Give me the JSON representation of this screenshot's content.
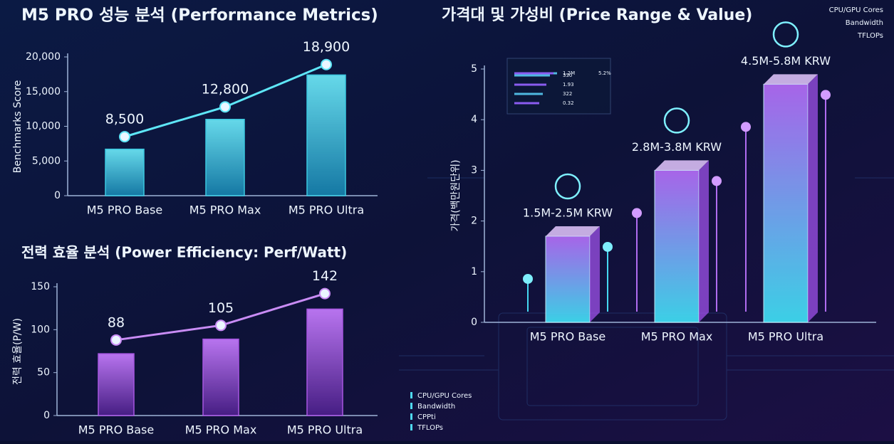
{
  "chart_data": [
    {
      "type": "bar_line",
      "title": "M5 PRO 성능 분석 (Performance Metrics)",
      "y_label": "Benchmarks Score",
      "categories": [
        "M5 PRO Base",
        "M5 PRO Max",
        "M5 PRO Ultra"
      ],
      "series": [
        {
          "type": "bar",
          "color": "#3fd8ee",
          "values": [
            6700,
            11000,
            17400
          ]
        },
        {
          "type": "line",
          "color": "#5ee6f7",
          "values": [
            8500,
            12800,
            18900
          ],
          "value_labels": [
            "8,500",
            "12,800",
            "18,900"
          ]
        }
      ],
      "ylim": [
        0,
        20000
      ],
      "yticks": [
        0,
        {
          "value": 5000,
          "label": "5,000"
        },
        {
          "value": 10000,
          "label": "10,000"
        },
        {
          "value": 15000,
          "label": "15,000"
        },
        {
          "value": 20000,
          "label": "20,000"
        }
      ]
    },
    {
      "type": "bar_line",
      "title": "전력 효율 분석 (Power Efficiency: Perf/Watt)",
      "y_label": "전력 효율(P/W)",
      "categories": [
        "M5 PRO Base",
        "M5 PRO Max",
        "M5 PRO Ultra"
      ],
      "series": [
        {
          "type": "bar",
          "color": "#b45cf0",
          "values": [
            72,
            89,
            124
          ]
        },
        {
          "type": "line",
          "color": "#c98cf5",
          "values": [
            88,
            105,
            142
          ]
        }
      ],
      "ylim": [
        0,
        150
      ],
      "yticks": [
        0,
        50,
        100,
        150
      ]
    },
    {
      "type": "bar3d",
      "title": "가격대 및 가성비 (Price Range & Value)",
      "y_label": "가격(백만원단위)",
      "categories": [
        "M5 PRO Base",
        "M5 PRO Max",
        "M5 PRO Ultra"
      ],
      "series": [
        {
          "color": "#a855f7",
          "values": [
            1.7,
            3.0,
            4.7
          ]
        }
      ],
      "annotations": [
        "1.5M-2.5M KRW",
        "2.8M-3.8M KRW",
        "4.5M-5.8M KRW"
      ],
      "ylim": [
        0,
        5
      ],
      "yticks": [
        0,
        1,
        2,
        3,
        4,
        5
      ]
    }
  ],
  "decor": {
    "legend_top": [
      "CPU/GPU Cores",
      "Bandwidth",
      "TFLOPs"
    ],
    "legend_bottom": [
      "CPU/GPU Cores",
      "Bandwidth",
      "CPPti",
      "TFLOPs"
    ],
    "panel_text": [
      "1.2M",
      "5.2%",
      "330",
      "1.93",
      "322",
      "0.32"
    ]
  }
}
